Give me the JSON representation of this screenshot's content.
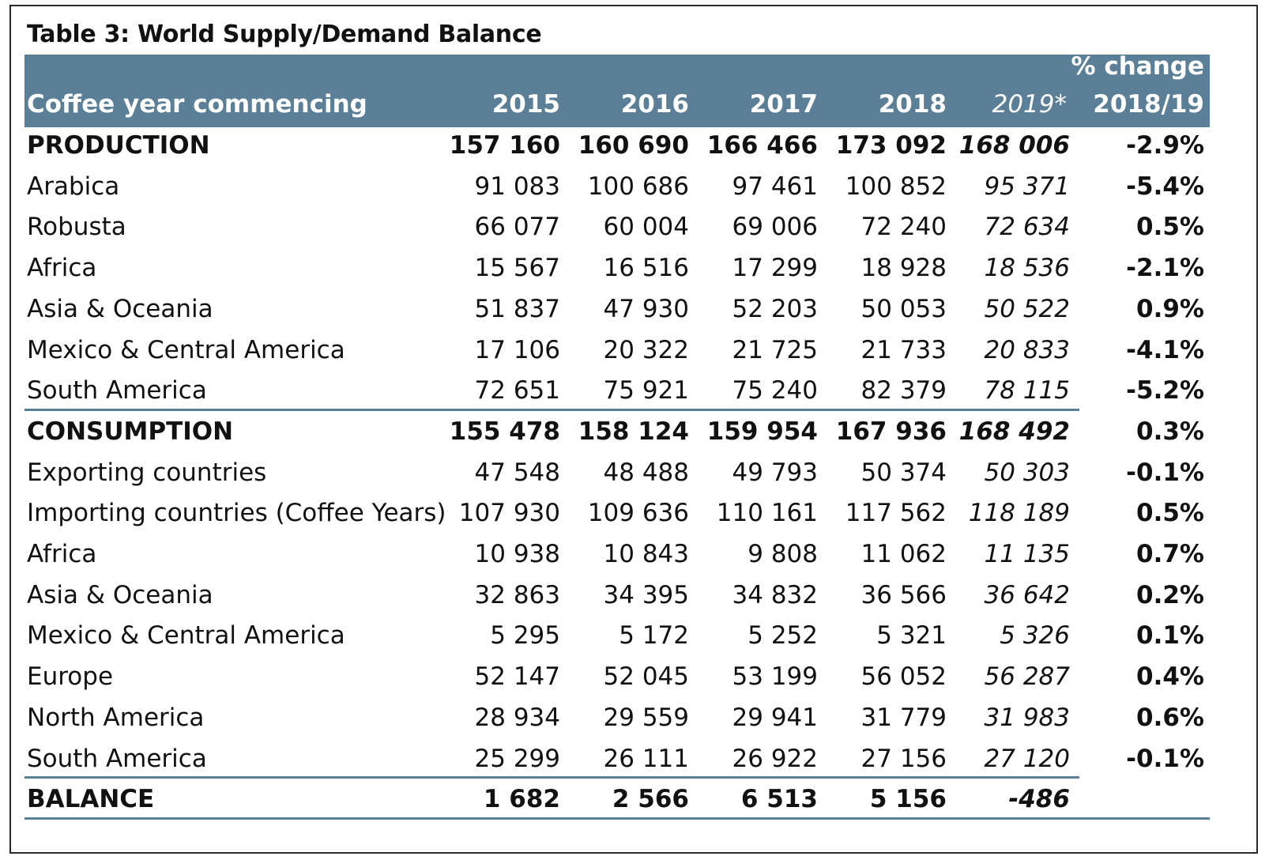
{
  "chart_data": {
    "type": "table",
    "title": "Table 3: World Supply/Demand Balance",
    "columns": [
      "Coffee year commencing",
      "2015",
      "2016",
      "2017",
      "2018",
      "2019*",
      "% change 2018/19"
    ],
    "header": {
      "label": "Coffee year commencing",
      "years": [
        "2015",
        "2016",
        "2017",
        "2018",
        "2019*"
      ],
      "change_line1": "% change",
      "change_line2": "2018/19"
    },
    "rows": [
      {
        "label": "PRODUCTION",
        "values": [
          "157 160",
          "160 690",
          "166 466",
          "173 092",
          "168 006"
        ],
        "change": "-2.9%",
        "bold": true
      },
      {
        "label": "Arabica",
        "values": [
          "91 083",
          "100 686",
          "97 461",
          "100 852",
          "95 371"
        ],
        "change": "-5.4%",
        "bold": false
      },
      {
        "label": "Robusta",
        "values": [
          "66 077",
          "60 004",
          "69 006",
          "72 240",
          "72 634"
        ],
        "change": "0.5%",
        "bold": false
      },
      {
        "label": "Africa",
        "values": [
          "15 567",
          "16 516",
          "17 299",
          "18 928",
          "18 536"
        ],
        "change": "-2.1%",
        "bold": false
      },
      {
        "label": "Asia & Oceania",
        "values": [
          "51 837",
          "47 930",
          "52 203",
          "50 053",
          "50 522"
        ],
        "change": "0.9%",
        "bold": false
      },
      {
        "label": "Mexico & Central America",
        "values": [
          "17 106",
          "20 322",
          "21 725",
          "21 733",
          "20 833"
        ],
        "change": "-4.1%",
        "bold": false
      },
      {
        "label": "South America",
        "values": [
          "72 651",
          "75 921",
          "75 240",
          "82 379",
          "78 115"
        ],
        "change": "-5.2%",
        "bold": false
      },
      {
        "label": "CONSUMPTION",
        "values": [
          "155 478",
          "158 124",
          "159 954",
          "167 936",
          "168 492"
        ],
        "change": "0.3%",
        "bold": true
      },
      {
        "label": "Exporting countries",
        "values": [
          "47 548",
          "48 488",
          "49 793",
          "50 374",
          "50 303"
        ],
        "change": "-0.1%",
        "bold": false
      },
      {
        "label": "Importing countries (Coffee Years)",
        "values": [
          "107 930",
          "109 636",
          "110 161",
          "117 562",
          "118 189"
        ],
        "change": "0.5%",
        "bold": false
      },
      {
        "label": "Africa",
        "values": [
          "10 938",
          "10 843",
          "9 808",
          "11 062",
          "11 135"
        ],
        "change": "0.7%",
        "bold": false
      },
      {
        "label": "Asia & Oceania",
        "values": [
          "32 863",
          "34 395",
          "34 832",
          "36 566",
          "36 642"
        ],
        "change": "0.2%",
        "bold": false
      },
      {
        "label": "Mexico & Central America",
        "values": [
          "5 295",
          "5 172",
          "5 252",
          "5 321",
          "5 326"
        ],
        "change": "0.1%",
        "bold": false
      },
      {
        "label": "Europe",
        "values": [
          "52 147",
          "52 045",
          "53 199",
          "56 052",
          "56 287"
        ],
        "change": "0.4%",
        "bold": false
      },
      {
        "label": "North America",
        "values": [
          "28 934",
          "29 559",
          "29 941",
          "31 779",
          "31 983"
        ],
        "change": "0.6%",
        "bold": false
      },
      {
        "label": "South America",
        "values": [
          "25 299",
          "26 111",
          "26 922",
          "27 156",
          "27 120"
        ],
        "change": "-0.1%",
        "bold": false
      },
      {
        "label": "BALANCE",
        "values": [
          "1 682",
          "2 566",
          "6 513",
          "5 156",
          "-486"
        ],
        "change": "",
        "bold": true
      }
    ]
  },
  "colors": {
    "header_band": "#5a7f96",
    "header_text": "#ffffff",
    "separator": "#5a7f96",
    "text": "#111111"
  }
}
